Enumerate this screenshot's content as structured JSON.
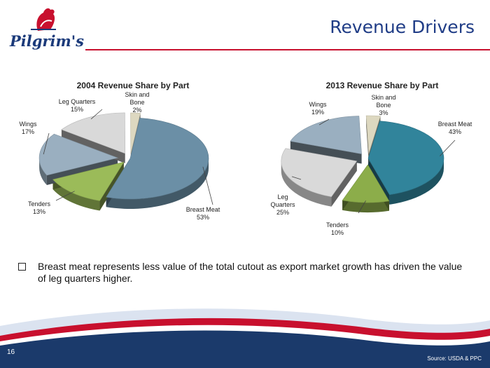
{
  "header": {
    "logo_text": "Pilgrim's",
    "title": "Revenue Drivers"
  },
  "chart_data": [
    {
      "type": "pie",
      "title": "2004 Revenue Share by Part",
      "slices": [
        {
          "label": "Breast Meat",
          "value": 53,
          "display": "53%",
          "color": "#6b8fa6"
        },
        {
          "label": "Tenders",
          "value": 13,
          "display": "13%",
          "color": "#9bbb59"
        },
        {
          "label": "Wings",
          "value": 17,
          "display": "17%",
          "color": "#9aafc0"
        },
        {
          "label": "Leg Quarters",
          "value": 15,
          "display": "15%",
          "color": "#d9d9d9"
        },
        {
          "label": "Skin and Bone",
          "value": 2,
          "display": "2%",
          "color": "#ddd8c0"
        }
      ]
    },
    {
      "type": "pie",
      "title": "2013 Revenue Share by Part",
      "slices": [
        {
          "label": "Breast Meat",
          "value": 43,
          "display": "43%",
          "color": "#31849b"
        },
        {
          "label": "Tenders",
          "value": 10,
          "display": "10%",
          "color": "#8cad4a"
        },
        {
          "label": "Leg Quarters",
          "value": 25,
          "display": "25%",
          "color": "#d9d9d9"
        },
        {
          "label": "Wings",
          "value": 19,
          "display": "19%",
          "color": "#9aafc0"
        },
        {
          "label": "Skin and Bone",
          "value": 3,
          "display": "3%",
          "color": "#ddd8c0"
        }
      ]
    }
  ],
  "body": {
    "bullet": "Breast meat represents less value of the total cutout as export market growth has driven the value of leg quarters higher."
  },
  "footer": {
    "page_number": "16",
    "source": "Source: USDA & PPC"
  },
  "colors": {
    "brand_blue": "#1f3c86",
    "brand_red": "#c8102e",
    "footer_navy": "#1b3a6b"
  }
}
